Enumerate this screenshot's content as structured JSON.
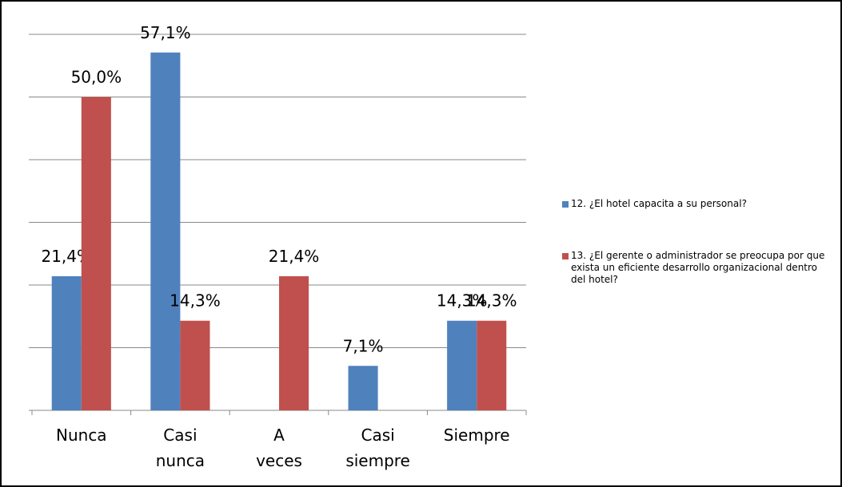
{
  "chart_data": {
    "type": "bar",
    "categories": [
      "Nunca",
      "Casi nunca",
      "A veces",
      "Casi siempre",
      "Siempre"
    ],
    "series": [
      {
        "name": "12. ¿El hotel capacita a su personal?",
        "color": "#4f81bd",
        "values": [
          21.4,
          57.1,
          null,
          7.1,
          14.3
        ],
        "value_labels": [
          "21,4%",
          "57,1%",
          null,
          "7,1%",
          "14,3%"
        ]
      },
      {
        "name": "13. ¿El gerente o administrador se preocupa por que exista un eficiente desarrollo organizacional dentro del hotel?",
        "color": "#c0504d",
        "values": [
          50.0,
          14.3,
          21.4,
          null,
          14.3
        ],
        "value_labels": [
          "50,0%",
          "14,3%",
          "21,4%",
          null,
          "14,3%"
        ]
      }
    ],
    "ylim": [
      0,
      60
    ],
    "yticks": [
      0,
      10,
      20,
      30,
      40,
      50,
      60
    ],
    "grid": true,
    "legend": "right"
  }
}
